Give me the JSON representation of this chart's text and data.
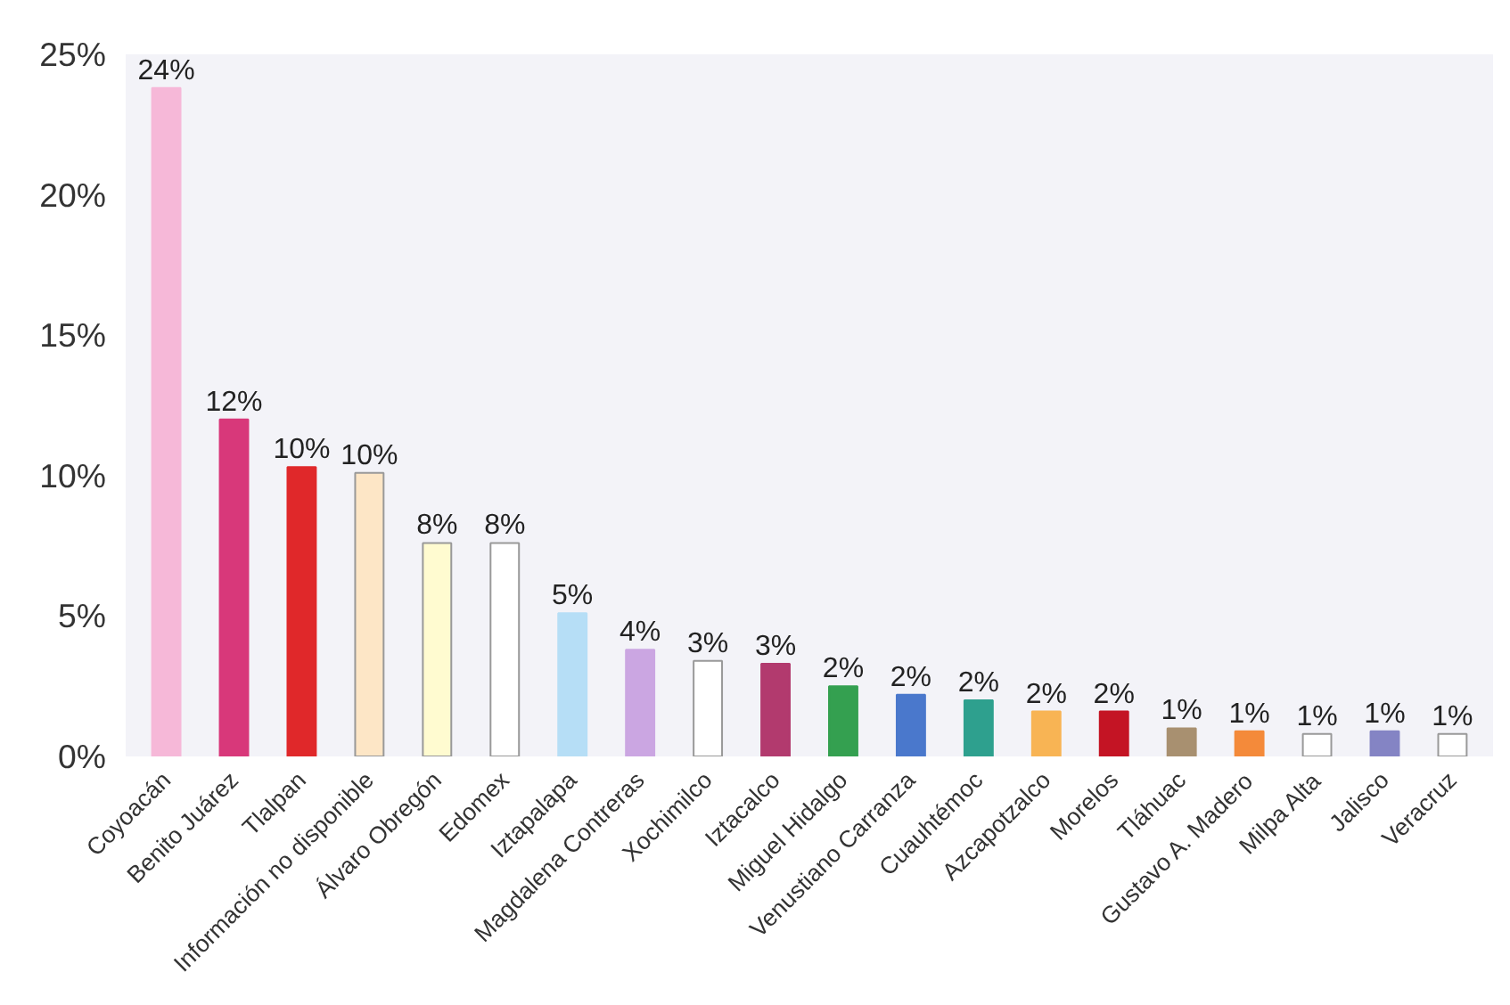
{
  "chart_data": {
    "type": "bar",
    "categories": [
      "Coyoacán",
      "Benito Juárez",
      "Tlalpan",
      "Información no disponible",
      "Álvaro Obregón",
      "Edomex",
      "Iztapalapa",
      "Magdalena Contreras",
      "Xochimilco",
      "Iztacalco",
      "Miguel Hidalgo",
      "Venustiano Carranza",
      "Cuauhtémoc",
      "Azcapotzalco",
      "Morelos",
      "Tláhuac",
      "Gustavo A. Madero",
      "Milpa Alta",
      "Jalisco",
      "Veracruz"
    ],
    "values": [
      23.8,
      12.0,
      10.3,
      10.1,
      7.6,
      7.6,
      5.1,
      3.8,
      3.4,
      3.3,
      2.5,
      2.2,
      2.0,
      1.6,
      1.6,
      1.0,
      0.9,
      0.8,
      0.9,
      0.8
    ],
    "value_labels": [
      "24%",
      "12%",
      "10%",
      "10%",
      "8%",
      "8%",
      "5%",
      "4%",
      "3%",
      "3%",
      "2%",
      "2%",
      "2%",
      "2%",
      "2%",
      "1%",
      "1%",
      "1%",
      "1%",
      "1%"
    ],
    "colors": [
      "#f6b8d8",
      "#d8387a",
      "#e0282a",
      "#fde6c6",
      "#fffbd0",
      "#ffffff",
      "#b6def6",
      "#cba6e2",
      "#ffffff",
      "#b23a6e",
      "#34a050",
      "#4a78cc",
      "#2ea08e",
      "#f8b454",
      "#c41424",
      "#a89070",
      "#f48a3a",
      "#ffffff",
      "#8484c4",
      "#ffffff"
    ],
    "ylim": [
      0,
      25
    ],
    "yticks": [
      {
        "value": 0,
        "label": "0%"
      },
      {
        "value": 5,
        "label": "5%"
      },
      {
        "value": 10,
        "label": "10%"
      },
      {
        "value": 15,
        "label": "15%"
      },
      {
        "value": 20,
        "label": "20%"
      },
      {
        "value": 25,
        "label": "25%"
      }
    ],
    "grid": false
  }
}
